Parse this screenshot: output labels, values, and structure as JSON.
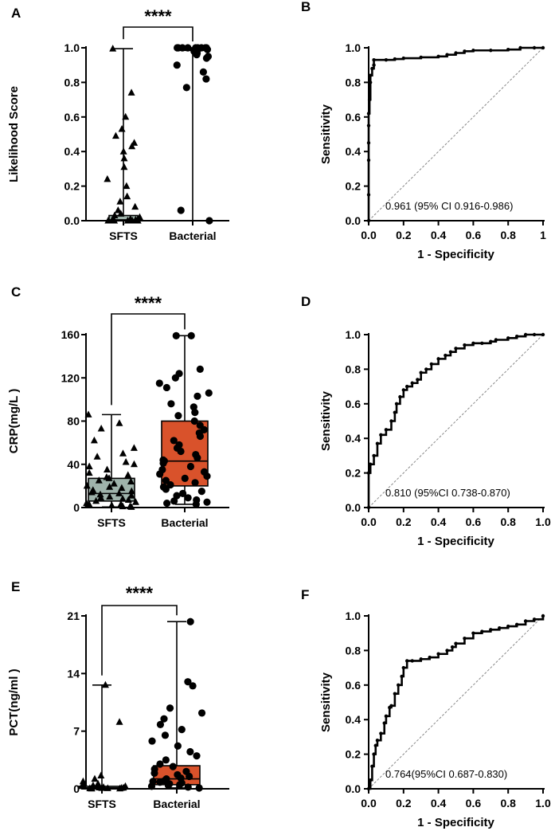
{
  "colors": {
    "sfts_box": "#9fb3ab",
    "bacterial_box": "#d9522b",
    "line": "#000000",
    "diagonal": "#888888"
  },
  "chart_data": [
    {
      "panel": "A",
      "type": "box",
      "ylabel": "Likelihood Score",
      "ylim": [
        0,
        1.0
      ],
      "yticks": [
        "0.0",
        "0.2",
        "0.4",
        "0.6",
        "0.8",
        "1.0"
      ],
      "categories": [
        "SFTS",
        "Bacterial"
      ],
      "significance": "****",
      "groups": [
        {
          "name": "SFTS",
          "marker": "triangle",
          "min": 0,
          "q1": 0,
          "median": 0.005,
          "q3": 0.03,
          "max": 0.995,
          "points": [
            0.995,
            0.74,
            0.6,
            0.53,
            0.49,
            0.45,
            0.43,
            0.4,
            0.36,
            0.31,
            0.24,
            0.2,
            0.14,
            0.11,
            0.08,
            0.06,
            0.04,
            0.03,
            0.02,
            0.01,
            0.005,
            0.0,
            0.0,
            0.0,
            0.0,
            0.0,
            0.0,
            0.0,
            0.0,
            0.0
          ]
        },
        {
          "name": "Bacterial",
          "marker": "circle",
          "min": 0,
          "q1": 0.985,
          "median": 0.995,
          "q3": 1.0,
          "max": 1.0,
          "points": [
            1.0,
            1.0,
            1.0,
            1.0,
            1.0,
            1.0,
            1.0,
            1.0,
            1.0,
            0.995,
            0.99,
            0.985,
            0.98,
            0.97,
            0.96,
            0.95,
            0.94,
            0.9,
            0.86,
            0.82,
            0.77,
            0.06,
            0.0
          ]
        }
      ]
    },
    {
      "panel": "B",
      "type": "line",
      "xlabel": "1 - Specificity",
      "ylabel": "Sensitivity",
      "xlim": [
        0,
        1.0
      ],
      "ylim": [
        0,
        1.0
      ],
      "ticks": [
        "0.0",
        "0.2",
        "0.4",
        "0.6",
        "0.8",
        "1.0"
      ],
      "xticks": [
        "0.0",
        "0.2",
        "0.4",
        "0.6",
        "0.8",
        "1"
      ],
      "annotation": "0.961 (95% CI 0.916-0.986)",
      "x": [
        0,
        0,
        0,
        0,
        0,
        0,
        0.005,
        0.01,
        0.01,
        0.02,
        0.03,
        0.03,
        0.1,
        0.15,
        0.2,
        0.3,
        0.4,
        0.45,
        0.5,
        0.55,
        0.6,
        0.7,
        0.8,
        0.87,
        0.95,
        1.0
      ],
      "y": [
        0,
        0.15,
        0.35,
        0.45,
        0.55,
        0.62,
        0.7,
        0.8,
        0.84,
        0.88,
        0.9,
        0.93,
        0.93,
        0.935,
        0.94,
        0.945,
        0.95,
        0.96,
        0.97,
        0.98,
        0.985,
        0.985,
        0.99,
        1.0,
        1.0,
        1.0
      ]
    },
    {
      "panel": "C",
      "type": "box",
      "ylabel": "CRP(mg/L )",
      "ylim": [
        0,
        160
      ],
      "yticks": [
        "0",
        "40",
        "80",
        "120",
        "160"
      ],
      "categories": [
        "SFTS",
        "Bacterial"
      ],
      "significance": "****",
      "groups": [
        {
          "name": "SFTS",
          "marker": "triangle",
          "min": 0.5,
          "q1": 6,
          "median": 13,
          "q3": 27,
          "max": 86,
          "points": [
            86,
            78,
            73,
            62,
            55,
            50,
            47,
            42,
            40,
            38,
            35,
            32,
            30,
            28,
            27,
            25,
            24,
            22,
            20,
            19,
            18,
            16,
            15,
            14,
            13,
            12,
            11,
            10,
            9,
            8,
            7,
            6,
            5,
            4,
            3,
            3,
            2,
            2,
            1,
            1,
            0.5
          ]
        },
        {
          "name": "Bacterial",
          "marker": "circle",
          "min": 3,
          "q1": 20,
          "median": 43,
          "q3": 80,
          "max": 159,
          "points": [
            159,
            159,
            128,
            124,
            120,
            115,
            111,
            106,
            103,
            96,
            93,
            88,
            85,
            80,
            76,
            72,
            69,
            66,
            62,
            58,
            55,
            52,
            49,
            46,
            44,
            43,
            41,
            38,
            35,
            33,
            31,
            29,
            27,
            25,
            23,
            21,
            19,
            17,
            15,
            13,
            11,
            9,
            7,
            6,
            5,
            4,
            3
          ]
        }
      ]
    },
    {
      "panel": "D",
      "type": "line",
      "xlabel": "1 - Specificity",
      "ylabel": "Sensitivity",
      "xlim": [
        0,
        1.0
      ],
      "ylim": [
        0,
        1.0
      ],
      "ticks": [
        "0.0",
        "0.2",
        "0.4",
        "0.6",
        "0.8",
        "1.0"
      ],
      "xticks": [
        "0.0",
        "0.2",
        "0.4",
        "0.6",
        "0.8",
        "1.0"
      ],
      "annotation": "0.810 (95%CI 0.738-0.870)",
      "x": [
        0,
        0,
        0.01,
        0.03,
        0.05,
        0.07,
        0.1,
        0.13,
        0.15,
        0.16,
        0.18,
        0.2,
        0.22,
        0.25,
        0.28,
        0.3,
        0.33,
        0.36,
        0.4,
        0.44,
        0.47,
        0.5,
        0.55,
        0.6,
        0.65,
        0.7,
        0.73,
        0.8,
        0.85,
        0.9,
        0.95,
        1.0
      ],
      "y": [
        0,
        0.2,
        0.25,
        0.3,
        0.37,
        0.42,
        0.45,
        0.5,
        0.55,
        0.6,
        0.64,
        0.68,
        0.7,
        0.72,
        0.74,
        0.78,
        0.8,
        0.83,
        0.86,
        0.88,
        0.9,
        0.92,
        0.94,
        0.95,
        0.95,
        0.96,
        0.97,
        0.98,
        0.99,
        1.0,
        1.0,
        1.0
      ]
    },
    {
      "panel": "E",
      "type": "box",
      "ylabel": "PCT(ng/ml )",
      "ylim": [
        0,
        21
      ],
      "yticks": [
        "0",
        "7",
        "14",
        "21"
      ],
      "categories": [
        "SFTS",
        "Bacterial"
      ],
      "significance": "****",
      "groups": [
        {
          "name": "SFTS",
          "marker": "triangle",
          "min": 0.02,
          "q1": 0.05,
          "median": 0.12,
          "q3": 0.3,
          "max": 12.6,
          "points": [
            12.6,
            8.1,
            1.6,
            1.2,
            0.9,
            0.7,
            0.6,
            0.5,
            0.4,
            0.35,
            0.3,
            0.25,
            0.2,
            0.18,
            0.15,
            0.12,
            0.1,
            0.08,
            0.06,
            0.05,
            0.04,
            0.03,
            0.02
          ]
        },
        {
          "name": "Bacterial",
          "marker": "circle",
          "min": 0.1,
          "q1": 0.5,
          "median": 1.2,
          "q3": 2.8,
          "max": 20.3,
          "points": [
            20.3,
            13.0,
            12.5,
            9.8,
            9.2,
            8.5,
            7.8,
            7.2,
            6.5,
            5.8,
            5.2,
            4.5,
            4.0,
            3.5,
            3.0,
            2.7,
            2.4,
            2.1,
            1.9,
            1.7,
            1.5,
            1.3,
            1.2,
            1.0,
            0.9,
            0.8,
            0.7,
            0.6,
            0.5,
            0.4,
            0.3,
            0.2,
            0.1
          ]
        }
      ]
    },
    {
      "panel": "F",
      "type": "line",
      "xlabel": "1 - Specificity",
      "ylabel": "Sensitivity",
      "xlim": [
        0,
        1.0
      ],
      "ylim": [
        0,
        1.0
      ],
      "ticks": [
        "0.0",
        "0.2",
        "0.4",
        "0.6",
        "0.8",
        "1.0"
      ],
      "xticks": [
        "0.0",
        "0.2",
        "0.4",
        "0.6",
        "0.8",
        "1.0"
      ],
      "annotation": "0.764(95%CI 0.687-0.830)",
      "x": [
        0,
        0.01,
        0.02,
        0.03,
        0.04,
        0.05,
        0.07,
        0.09,
        0.1,
        0.12,
        0.13,
        0.15,
        0.17,
        0.19,
        0.2,
        0.22,
        0.25,
        0.3,
        0.35,
        0.4,
        0.45,
        0.48,
        0.5,
        0.55,
        0.6,
        0.65,
        0.7,
        0.75,
        0.8,
        0.85,
        0.9,
        0.95,
        1.0
      ],
      "y": [
        0,
        0.05,
        0.13,
        0.2,
        0.25,
        0.28,
        0.32,
        0.38,
        0.42,
        0.47,
        0.48,
        0.55,
        0.6,
        0.65,
        0.7,
        0.74,
        0.74,
        0.75,
        0.76,
        0.78,
        0.8,
        0.82,
        0.84,
        0.87,
        0.9,
        0.91,
        0.92,
        0.93,
        0.94,
        0.95,
        0.97,
        0.98,
        1.0
      ]
    }
  ]
}
